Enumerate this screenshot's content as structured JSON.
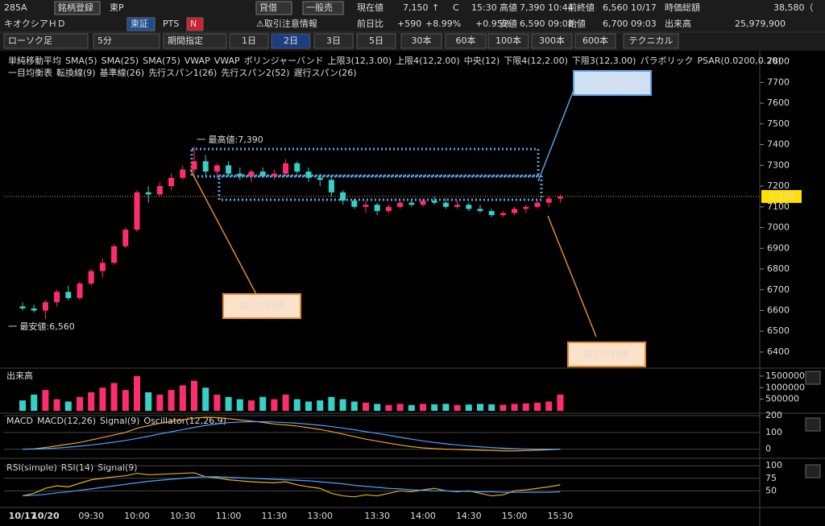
{
  "header": {
    "row1": [
      "285A",
      "銘柄登録",
      "東P",
      "貸借",
      "一般売",
      "現在値",
      "7,150",
      "↑",
      "C",
      "15:30",
      "高値",
      "7,390 10:44",
      "前終値",
      "6,560 10/17",
      "時価総額",
      "38,580（"
    ],
    "row2": [
      "キオクシアＨＤ",
      "東証",
      "PTS",
      "N",
      "⚠取引注意情報",
      "前日比",
      "+590",
      "+8.99%",
      "+0.95%",
      "安値",
      "6,590 09:08",
      "始値",
      "6,700 09:03",
      "出来高",
      "25,979,900"
    ],
    "toolbar": [
      "ローソク足",
      "5分",
      "期間指定",
      "1日",
      "2日",
      "3日",
      "5日",
      "30本",
      "60本",
      "100本",
      "300本",
      "600本",
      "テクニカル"
    ]
  },
  "legend": {
    "row1": [
      {
        "text": "単純移動平均",
        "color": "#ffffff"
      },
      {
        "text": "SMA(5)",
        "color": "#ff4f8f"
      },
      {
        "text": "SMA(25)",
        "color": "#4ca0ff"
      },
      {
        "text": "SMA(75)",
        "color": "#d080ff"
      },
      {
        "text": "VWAP",
        "color": "#ffffff"
      },
      {
        "text": "VWAP",
        "color": "#70ff20"
      },
      {
        "text": "ボリンジャーバンド",
        "color": "#ffffff"
      },
      {
        "text": "上限3(12,3.00)",
        "color": "#ff4040"
      },
      {
        "text": "上限4(12,2.00)",
        "color": "#4ca0ff"
      },
      {
        "text": "中央(12)",
        "color": "#ff4f8f"
      },
      {
        "text": "下限4(12,2.00)",
        "color": "#4ca0ff"
      },
      {
        "text": "下限3(12,3.00)",
        "color": "#ff6030"
      },
      {
        "text": "パラボリック",
        "color": "#ffffff"
      },
      {
        "text": "PSAR(0.0200,0.20)",
        "color": "#ffcc00"
      }
    ],
    "row2": [
      {
        "text": "一目均衡表",
        "color": "#ffffff"
      },
      {
        "text": "転換線(9)",
        "color": "#ff4f8f"
      },
      {
        "text": "基準線(26)",
        "color": "#ffcc00"
      },
      {
        "text": "先行スパン1(26)",
        "color": "#ff4040"
      },
      {
        "text": "先行スパン2(52)",
        "color": "#40c0a0"
      },
      {
        "text": "遅行スパン(26)",
        "color": "#4ca0ff"
      }
    ]
  },
  "chart_data": [
    {
      "type": "candlestick",
      "up_color": "#ff2d6f",
      "down_color": "#35d0c8",
      "categories": [
        "10/17",
        null,
        "10/20",
        null,
        null,
        null,
        "09:30",
        null,
        null,
        null,
        "10:00",
        null,
        null,
        null,
        "10:30",
        null,
        null,
        null,
        "11:00",
        null,
        null,
        null,
        "11:30",
        null,
        null,
        null,
        "13:00",
        null,
        null,
        null,
        null,
        "13:30",
        null,
        null,
        null,
        "14:00",
        null,
        null,
        null,
        "14:30",
        null,
        null,
        null,
        "15:00",
        null,
        null,
        null,
        "15:30"
      ],
      "candles": [
        [
          6620,
          6640,
          6600,
          6610
        ],
        [
          6610,
          6630,
          6590,
          6600
        ],
        [
          6600,
          6650,
          6560,
          6640
        ],
        [
          6640,
          6700,
          6620,
          6690
        ],
        [
          6690,
          6720,
          6650,
          6660
        ],
        [
          6660,
          6740,
          6650,
          6730
        ],
        [
          6730,
          6800,
          6720,
          6790
        ],
        [
          6790,
          6850,
          6760,
          6830
        ],
        [
          6830,
          6920,
          6820,
          6910
        ],
        [
          6910,
          7000,
          6900,
          6990
        ],
        [
          6990,
          7180,
          6980,
          7170
        ],
        [
          7170,
          7200,
          7120,
          7160
        ],
        [
          7160,
          7220,
          7150,
          7200
        ],
        [
          7200,
          7260,
          7180,
          7240
        ],
        [
          7240,
          7300,
          7230,
          7280
        ],
        [
          7280,
          7390,
          7260,
          7320
        ],
        [
          7320,
          7350,
          7250,
          7270
        ],
        [
          7270,
          7310,
          7240,
          7300
        ],
        [
          7300,
          7320,
          7250,
          7260
        ],
        [
          7260,
          7290,
          7230,
          7250
        ],
        [
          7250,
          7280,
          7220,
          7270
        ],
        [
          7270,
          7290,
          7240,
          7250
        ],
        [
          7250,
          7280,
          7230,
          7260
        ],
        [
          7260,
          7330,
          7250,
          7310
        ],
        [
          7310,
          7320,
          7260,
          7270
        ],
        [
          7270,
          7290,
          7220,
          7240
        ],
        [
          7240,
          7260,
          7200,
          7230
        ],
        [
          7230,
          7240,
          7150,
          7170
        ],
        [
          7170,
          7180,
          7110,
          7130
        ],
        [
          7130,
          7140,
          7090,
          7100
        ],
        [
          7100,
          7130,
          7070,
          7110
        ],
        [
          7110,
          7120,
          7060,
          7080
        ],
        [
          7080,
          7110,
          7070,
          7100
        ],
        [
          7100,
          7130,
          7090,
          7120
        ],
        [
          7120,
          7140,
          7100,
          7110
        ],
        [
          7110,
          7140,
          7100,
          7130
        ],
        [
          7130,
          7150,
          7110,
          7120
        ],
        [
          7120,
          7140,
          7090,
          7100
        ],
        [
          7100,
          7130,
          7090,
          7110
        ],
        [
          7110,
          7120,
          7080,
          7090
        ],
        [
          7090,
          7110,
          7070,
          7080
        ],
        [
          7080,
          7090,
          7050,
          7060
        ],
        [
          7060,
          7080,
          7050,
          7070
        ],
        [
          7070,
          7100,
          7060,
          7090
        ],
        [
          7090,
          7110,
          7070,
          7100
        ],
        [
          7100,
          7130,
          7090,
          7120
        ],
        [
          7120,
          7150,
          7100,
          7140
        ],
        [
          7140,
          7160,
          7120,
          7150
        ]
      ],
      "ylim": [
        6330,
        7845
      ],
      "yticks": [
        6400,
        6500,
        6600,
        6700,
        6800,
        6900,
        7000,
        7100,
        7200,
        7300,
        7400,
        7500,
        7600,
        7700,
        7800
      ],
      "last_price": 7150,
      "last_price_label": "7,150",
      "high_label": "一 最高値:7,390",
      "low_label": "一 最安値:6,560",
      "annotations": [
        "買いで損切",
        "買いで利確",
        "買いで利確"
      ]
    },
    {
      "type": "bar",
      "title": "出来高",
      "ylim": [
        0,
        1740000
      ],
      "yticks": [
        500000,
        1000000,
        1500000
      ],
      "values": [
        450000,
        700000,
        900000,
        500000,
        400000,
        600000,
        800000,
        1000000,
        1200000,
        900000,
        1500000,
        800000,
        700000,
        900000,
        1100000,
        1300000,
        1000000,
        700000,
        600000,
        500000,
        450000,
        600000,
        500000,
        700000,
        500000,
        400000,
        450000,
        600000,
        500000,
        400000,
        350000,
        300000,
        250000,
        300000,
        250000,
        300000,
        280000,
        300000,
        250000,
        270000,
        300000,
        280000,
        260000,
        300000,
        320000,
        350000,
        400000,
        700000
      ]
    },
    {
      "type": "line",
      "title": "MACD",
      "extra_label": "Oscillator(12,26,9)",
      "ylim": [
        -45,
        205
      ],
      "yticks": [
        0,
        100,
        200
      ],
      "series": [
        {
          "name": "MACD(12,26)",
          "color": "#f0a020",
          "values": [
            0,
            2,
            10,
            20,
            30,
            40,
            55,
            70,
            85,
            100,
            125,
            140,
            155,
            165,
            175,
            185,
            190,
            188,
            182,
            175,
            168,
            160,
            150,
            145,
            138,
            128,
            118,
            105,
            90,
            75,
            60,
            48,
            36,
            25,
            15,
            8,
            3,
            0,
            -2,
            -4,
            -6,
            -8,
            -10,
            -10,
            -8,
            -6,
            -3,
            0
          ]
        },
        {
          "name": "Signal(9)",
          "color": "#4ca0ff",
          "values": [
            0,
            1,
            3,
            7,
            12,
            18,
            25,
            33,
            42,
            52,
            64,
            77,
            91,
            104,
            117,
            130,
            142,
            151,
            158,
            162,
            164,
            164,
            162,
            159,
            155,
            149,
            143,
            135,
            126,
            116,
            105,
            94,
            83,
            71,
            60,
            49,
            40,
            32,
            25,
            19,
            14,
            10,
            6,
            3,
            1,
            0,
            0,
            0
          ]
        }
      ]
    },
    {
      "type": "line",
      "title": "RSI(simple)",
      "ylim": [
        20,
        110
      ],
      "yticks": [
        50,
        75,
        100
      ],
      "series": [
        {
          "name": "RSI(14)",
          "color": "#e0b020",
          "values": [
            40,
            45,
            55,
            60,
            58,
            65,
            72,
            75,
            78,
            80,
            85,
            82,
            83,
            84,
            85,
            86,
            78,
            76,
            72,
            70,
            68,
            67,
            66,
            68,
            62,
            58,
            55,
            45,
            40,
            38,
            42,
            40,
            45,
            50,
            48,
            52,
            55,
            50,
            48,
            50,
            45,
            40,
            42,
            50,
            52,
            55,
            58,
            62
          ]
        },
        {
          "name": "Signal(9)",
          "color": "#4ca0ff",
          "values": [
            40,
            41,
            43,
            46,
            48,
            51,
            54,
            57,
            60,
            63,
            66,
            69,
            71,
            73,
            75,
            77,
            78,
            78,
            77,
            76,
            75,
            74,
            73,
            72,
            71,
            70,
            68,
            66,
            64,
            61,
            59,
            57,
            55,
            54,
            52,
            51,
            50,
            50,
            49,
            49,
            48,
            48,
            47,
            47,
            47,
            47,
            47,
            48
          ]
        }
      ]
    }
  ]
}
